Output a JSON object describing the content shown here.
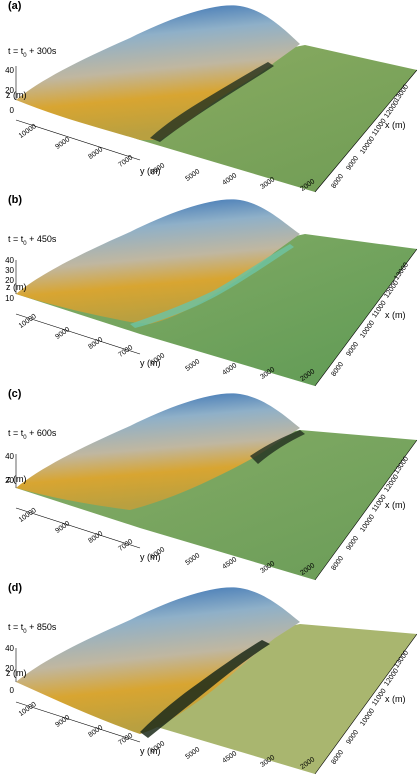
{
  "colors": {
    "sea": "#7fa45e",
    "sea_light": "#a9b66f",
    "sand": "#c9a54a",
    "gold": "#d8a531",
    "ridge_blue": "#1f5fae",
    "ridge_grey": "#b8c2c6",
    "front_dark": "#20281e",
    "front_teal": "#6fc2a0"
  },
  "axes": {
    "z_label": "z (m)",
    "y_label": "y (m)",
    "x_label": "x (m)",
    "z_ticks": [
      "40",
      "30",
      "20",
      "10",
      "0"
    ],
    "y_ticks_a": [
      "10000",
      "9000",
      "8000",
      "7000",
      "6000",
      "5000",
      "4000",
      "3000",
      "2000"
    ],
    "y_ticks_c": [
      "10000",
      "9000",
      "8000",
      "7000",
      "6000",
      "5000",
      "4500",
      "3000",
      "2000"
    ],
    "x_ticks": [
      "8000",
      "9000",
      "10000",
      "11000",
      "12000",
      "13000",
      "14000",
      "15000",
      "16000",
      "17000",
      "18000"
    ]
  },
  "panels": [
    {
      "id": "a",
      "label": "(a)",
      "time_prefix": "t = t",
      "time_sub": "0",
      "time_suffix": " + 300s",
      "z_ticks": [
        "40",
        "20",
        "0"
      ]
    },
    {
      "id": "b",
      "label": "(b)",
      "time_prefix": "t = t",
      "time_sub": "0",
      "time_suffix": " + 450s",
      "z_ticks": [
        "40",
        "30",
        "20",
        "10"
      ]
    },
    {
      "id": "c",
      "label": "(c)",
      "time_prefix": "t = t",
      "time_sub": "0",
      "time_suffix": " + 600s",
      "z_ticks": [
        "40",
        "20"
      ]
    },
    {
      "id": "d",
      "label": "(d)",
      "time_prefix": "t = t",
      "time_sub": "0",
      "time_suffix": " + 850s",
      "z_ticks": [
        "40",
        "20",
        "0"
      ]
    }
  ]
}
